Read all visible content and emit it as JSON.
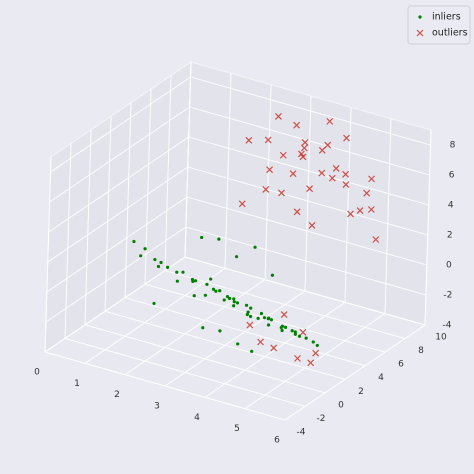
{
  "chart_data": {
    "type": "scatter3d",
    "xlim": [
      0,
      6
    ],
    "ylim": [
      -4,
      10
    ],
    "zlim": [
      -4,
      9
    ],
    "xticks": [
      0,
      1,
      2,
      3,
      4,
      5,
      6
    ],
    "yticks": [
      -4,
      -2,
      0,
      2,
      4,
      6,
      8,
      10
    ],
    "zticks": [
      -4,
      -2,
      0,
      2,
      4,
      6,
      8
    ],
    "grid": true,
    "legend": "upper right",
    "series": [
      {
        "name": "inliers",
        "marker": "dot",
        "color": "#008000",
        "x": [
          0.3,
          0.6,
          0.8,
          1.0,
          1.1,
          1.3,
          1.4,
          1.6,
          1.7,
          1.9,
          2.0,
          2.1,
          2.2,
          2.3,
          2.4,
          2.5,
          2.6,
          2.7,
          2.8,
          2.9,
          3.0,
          3.0,
          3.1,
          3.2,
          3.3,
          3.4,
          3.5,
          3.5,
          3.6,
          3.7,
          3.8,
          3.9,
          4.0,
          4.0,
          4.1,
          4.2,
          4.3,
          4.4,
          4.5,
          4.5,
          4.6,
          4.7,
          4.8,
          4.9,
          5.0,
          5.1,
          5.2,
          5.3,
          5.5,
          5.7,
          2.0,
          2.5,
          3.0,
          3.5,
          4.0,
          1.5,
          2.8,
          3.3,
          4.2,
          3.8
        ],
        "y": [
          3.5,
          3.0,
          2.6,
          3.2,
          2.4,
          2.9,
          1.8,
          2.7,
          2.2,
          3.0,
          1.6,
          2.5,
          2.0,
          1.4,
          2.8,
          1.9,
          2.3,
          1.2,
          2.6,
          1.7,
          2.1,
          0.9,
          2.4,
          1.5,
          1.9,
          1.1,
          2.2,
          0.7,
          1.6,
          1.3,
          2.0,
          0.8,
          1.5,
          0.4,
          1.8,
          1.0,
          1.3,
          0.6,
          1.6,
          0.2,
          1.1,
          0.8,
          1.4,
          0.3,
          0.9,
          0.5,
          1.2,
          0.1,
          0.7,
          0.3,
          3.4,
          3.1,
          2.9,
          2.7,
          2.5,
          0.8,
          0.5,
          0.2,
          -0.2,
          0.0
        ],
        "z": [
          0.2,
          -0.3,
          0.5,
          -0.8,
          0.1,
          -0.5,
          0.4,
          -1.1,
          -0.2,
          -0.9,
          0.3,
          -0.6,
          -1.3,
          0.0,
          -0.4,
          -1.0,
          -0.7,
          0.2,
          -1.4,
          -0.3,
          -0.8,
          0.1,
          -1.2,
          -0.5,
          -0.9,
          -0.2,
          -1.5,
          -0.4,
          -0.7,
          -1.1,
          -1.6,
          -0.3,
          -0.9,
          -0.6,
          -1.3,
          -0.8,
          -1.0,
          -0.5,
          -1.7,
          -0.7,
          -1.2,
          -0.9,
          -1.4,
          -0.6,
          -1.1,
          -1.0,
          -1.5,
          -0.8,
          -1.3,
          -1.2,
          1.8,
          2.2,
          1.5,
          2.6,
          1.2,
          -1.8,
          -2.3,
          -2.0,
          -2.5,
          -2.4
        ]
      },
      {
        "name": "outliers",
        "marker": "x",
        "color": "#c8281e",
        "x": [
          2.1,
          2.5,
          2.8,
          3.0,
          3.2,
          3.4,
          3.6,
          3.8,
          4.0,
          4.2,
          4.5,
          4.8,
          5.0,
          2.3,
          2.7,
          3.1,
          3.5,
          3.9,
          4.3,
          4.7,
          2.6,
          3.0,
          3.4,
          3.8,
          4.2,
          4.6,
          5.2,
          2.9,
          3.3,
          3.7,
          4.1,
          4.4,
          3.6,
          4.0,
          4.5,
          5.0,
          5.5,
          4.2,
          4.8,
          5.3
        ],
        "y": [
          7.5,
          8.8,
          6.5,
          9.2,
          7.8,
          8.5,
          6.9,
          9.5,
          7.2,
          8.9,
          7.6,
          9.1,
          8.2,
          6.2,
          7.0,
          8.0,
          9.8,
          6.8,
          8.4,
          7.4,
          9.0,
          6.0,
          7.3,
          8.7,
          6.4,
          9.4,
          8.0,
          7.7,
          8.3,
          6.6,
          7.9,
          9.6,
          2.0,
          1.5,
          0.8,
          1.2,
          0.5,
          3.0,
          2.5,
          1.8
        ],
        "z": [
          6.5,
          7.8,
          4.2,
          5.5,
          8.2,
          3.8,
          6.8,
          5.0,
          7.4,
          4.5,
          6.0,
          3.2,
          5.8,
          3.0,
          7.2,
          4.8,
          6.2,
          2.5,
          7.9,
          3.6,
          5.2,
          5.9,
          2.8,
          8.5,
          6.4,
          4.0,
          2.0,
          3.5,
          6.9,
          7.6,
          5.3,
          2.6,
          -2.2,
          -2.8,
          -2.5,
          -3.0,
          -2.6,
          -1.5,
          -2.0,
          -2.7
        ]
      }
    ]
  }
}
